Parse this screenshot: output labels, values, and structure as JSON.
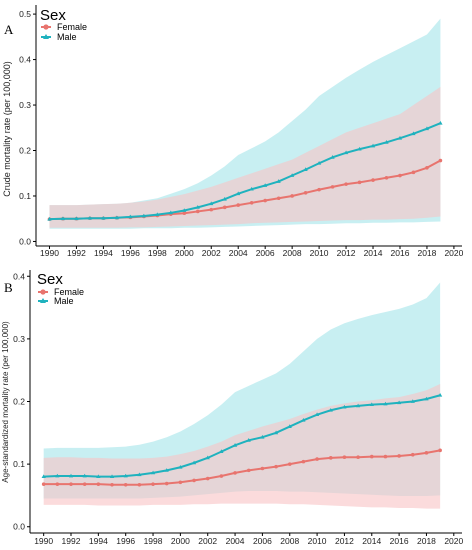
{
  "colors": {
    "female": "#E8746E",
    "male": "#1FB2BE",
    "female_band": "#F9C3C5",
    "male_band": "#B5E9EE",
    "overlap_band": "#CFDDDC",
    "axis": "#000000"
  },
  "chart_data": [
    {
      "type": "line",
      "panel": "A",
      "ylabel": "Crude mortality rate (per 100,000)",
      "xlabel": "",
      "legend": {
        "title": "Sex",
        "entries": [
          "Female",
          "Male"
        ],
        "placement": "top-left"
      },
      "xlim": [
        1989,
        2020.6
      ],
      "ylim": [
        -0.01,
        0.52
      ],
      "xticks": [
        1990,
        1992,
        1994,
        1996,
        1998,
        2000,
        2002,
        2004,
        2006,
        2008,
        2010,
        2012,
        2014,
        2016,
        2018,
        2020
      ],
      "yticks": [
        0.0,
        0.1,
        0.2,
        0.3,
        0.4,
        0.5
      ],
      "yticklabels": [
        "0.0",
        "0.1",
        "0.2",
        "0.3",
        "0.4",
        "0.5"
      ],
      "x": [
        1990,
        1991,
        1992,
        1993,
        1994,
        1995,
        1996,
        1997,
        1998,
        1999,
        2000,
        2001,
        2002,
        2003,
        2004,
        2005,
        2006,
        2007,
        2008,
        2009,
        2010,
        2011,
        2012,
        2013,
        2014,
        2015,
        2016,
        2017,
        2018,
        2019
      ],
      "series": [
        {
          "name": "Female",
          "values": [
            0.049,
            0.05,
            0.05,
            0.051,
            0.051,
            0.052,
            0.053,
            0.055,
            0.057,
            0.06,
            0.062,
            0.066,
            0.07,
            0.075,
            0.08,
            0.085,
            0.09,
            0.095,
            0.1,
            0.107,
            0.114,
            0.12,
            0.126,
            0.13,
            0.135,
            0.14,
            0.145,
            0.152,
            0.162,
            0.178
          ],
          "lower": [
            0.03,
            0.03,
            0.03,
            0.03,
            0.03,
            0.03,
            0.031,
            0.031,
            0.032,
            0.033,
            0.034,
            0.035,
            0.036,
            0.037,
            0.038,
            0.04,
            0.041,
            0.042,
            0.043,
            0.044,
            0.045,
            0.046,
            0.047,
            0.047,
            0.048,
            0.048,
            0.049,
            0.05,
            0.052,
            0.055
          ],
          "upper": [
            0.08,
            0.08,
            0.08,
            0.081,
            0.082,
            0.083,
            0.085,
            0.088,
            0.092,
            0.098,
            0.104,
            0.112,
            0.12,
            0.13,
            0.14,
            0.15,
            0.16,
            0.17,
            0.18,
            0.195,
            0.21,
            0.225,
            0.24,
            0.25,
            0.26,
            0.27,
            0.28,
            0.3,
            0.32,
            0.34
          ]
        },
        {
          "name": "Male",
          "values": [
            0.049,
            0.05,
            0.05,
            0.051,
            0.051,
            0.052,
            0.054,
            0.056,
            0.059,
            0.063,
            0.068,
            0.075,
            0.083,
            0.093,
            0.105,
            0.115,
            0.123,
            0.132,
            0.145,
            0.158,
            0.172,
            0.185,
            0.195,
            0.203,
            0.21,
            0.218,
            0.227,
            0.237,
            0.248,
            0.26
          ],
          "lower": [
            0.028,
            0.028,
            0.028,
            0.028,
            0.028,
            0.028,
            0.028,
            0.029,
            0.029,
            0.029,
            0.03,
            0.03,
            0.031,
            0.032,
            0.033,
            0.034,
            0.035,
            0.036,
            0.037,
            0.038,
            0.038,
            0.039,
            0.04,
            0.04,
            0.041,
            0.041,
            0.042,
            0.042,
            0.043,
            0.044
          ],
          "upper": [
            0.08,
            0.08,
            0.08,
            0.081,
            0.082,
            0.083,
            0.085,
            0.09,
            0.095,
            0.105,
            0.115,
            0.128,
            0.145,
            0.165,
            0.19,
            0.205,
            0.22,
            0.24,
            0.265,
            0.29,
            0.32,
            0.34,
            0.36,
            0.378,
            0.395,
            0.41,
            0.425,
            0.44,
            0.455,
            0.49
          ]
        }
      ]
    },
    {
      "type": "line",
      "panel": "B",
      "ylabel": "Age-standardized mortality rate (per 100,000)",
      "xlabel": "",
      "legend": {
        "title": "Sex",
        "entries": [
          "Female",
          "Male"
        ],
        "placement": "top-left"
      },
      "xlim": [
        1989,
        2020.6
      ],
      "ylim": [
        -0.01,
        0.41
      ],
      "xticks": [
        1990,
        1992,
        1994,
        1996,
        1998,
        2000,
        2002,
        2004,
        2006,
        2008,
        2010,
        2012,
        2014,
        2016,
        2018,
        2020
      ],
      "yticks": [
        0.0,
        0.1,
        0.2,
        0.3,
        0.4
      ],
      "yticklabels": [
        "0.0",
        "0.1",
        "0.2",
        "0.3",
        "0.4"
      ],
      "x": [
        1990,
        1991,
        1992,
        1993,
        1994,
        1995,
        1996,
        1997,
        1998,
        1999,
        2000,
        2001,
        2002,
        2003,
        2004,
        2005,
        2006,
        2007,
        2008,
        2009,
        2010,
        2011,
        2012,
        2013,
        2014,
        2015,
        2016,
        2017,
        2018,
        2019
      ],
      "series": [
        {
          "name": "Female",
          "values": [
            0.068,
            0.068,
            0.068,
            0.068,
            0.068,
            0.067,
            0.067,
            0.067,
            0.068,
            0.069,
            0.071,
            0.074,
            0.077,
            0.081,
            0.086,
            0.09,
            0.093,
            0.096,
            0.1,
            0.104,
            0.108,
            0.11,
            0.111,
            0.111,
            0.112,
            0.112,
            0.113,
            0.115,
            0.118,
            0.122
          ],
          "lower": [
            0.035,
            0.035,
            0.035,
            0.035,
            0.034,
            0.034,
            0.034,
            0.034,
            0.035,
            0.035,
            0.035,
            0.036,
            0.036,
            0.037,
            0.037,
            0.037,
            0.037,
            0.037,
            0.036,
            0.036,
            0.035,
            0.034,
            0.033,
            0.032,
            0.031,
            0.031,
            0.03,
            0.03,
            0.029,
            0.029
          ],
          "upper": [
            0.11,
            0.111,
            0.111,
            0.11,
            0.11,
            0.109,
            0.109,
            0.109,
            0.11,
            0.112,
            0.116,
            0.121,
            0.128,
            0.136,
            0.146,
            0.153,
            0.16,
            0.166,
            0.172,
            0.18,
            0.187,
            0.193,
            0.197,
            0.2,
            0.202,
            0.205,
            0.207,
            0.212,
            0.218,
            0.228
          ]
        },
        {
          "name": "Male",
          "values": [
            0.08,
            0.081,
            0.081,
            0.081,
            0.08,
            0.08,
            0.081,
            0.083,
            0.086,
            0.09,
            0.095,
            0.102,
            0.11,
            0.12,
            0.13,
            0.138,
            0.143,
            0.15,
            0.16,
            0.17,
            0.179,
            0.186,
            0.191,
            0.193,
            0.195,
            0.196,
            0.198,
            0.2,
            0.204,
            0.21
          ],
          "lower": [
            0.045,
            0.045,
            0.045,
            0.045,
            0.045,
            0.045,
            0.045,
            0.045,
            0.046,
            0.047,
            0.048,
            0.05,
            0.052,
            0.054,
            0.056,
            0.057,
            0.057,
            0.057,
            0.056,
            0.056,
            0.055,
            0.054,
            0.053,
            0.052,
            0.051,
            0.05,
            0.049,
            0.049,
            0.049,
            0.05
          ],
          "upper": [
            0.125,
            0.126,
            0.126,
            0.126,
            0.126,
            0.127,
            0.128,
            0.131,
            0.136,
            0.143,
            0.152,
            0.164,
            0.178,
            0.195,
            0.215,
            0.225,
            0.235,
            0.245,
            0.26,
            0.28,
            0.3,
            0.315,
            0.325,
            0.332,
            0.338,
            0.343,
            0.348,
            0.355,
            0.365,
            0.39
          ]
        }
      ]
    }
  ]
}
